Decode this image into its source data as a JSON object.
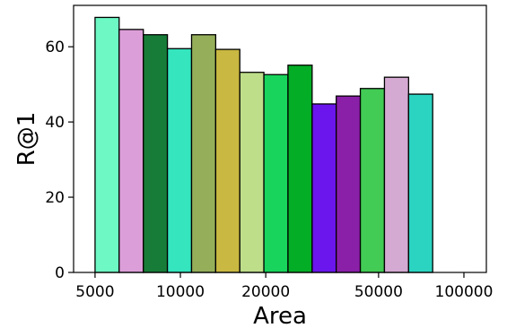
{
  "chart_data": {
    "type": "bar",
    "title": "",
    "xlabel": "Area",
    "ylabel": "R@1",
    "xscale": "log",
    "xlim": [
      4200,
      120000
    ],
    "ylim": [
      0,
      71
    ],
    "grid": false,
    "xticks": [
      {
        "value": 5000,
        "label": "5000"
      },
      {
        "value": 10000,
        "label": "10000"
      },
      {
        "value": 20000,
        "label": "20000"
      },
      {
        "value": 50000,
        "label": "50000"
      },
      {
        "value": 100000,
        "label": "100000"
      }
    ],
    "yticks": [
      {
        "value": 0,
        "label": "0"
      },
      {
        "value": 20,
        "label": "20"
      },
      {
        "value": 40,
        "label": "40"
      },
      {
        "value": 60,
        "label": "60"
      }
    ],
    "bins": [
      {
        "x0": 5000,
        "x1": 6080,
        "value": 67.8,
        "color": "#6df8c4"
      },
      {
        "x0": 6080,
        "x1": 7400,
        "value": 64.6,
        "color": "#dc9ed8"
      },
      {
        "x0": 7400,
        "x1": 9000,
        "value": 63.2,
        "color": "#177c38"
      },
      {
        "x0": 9000,
        "x1": 10950,
        "value": 59.5,
        "color": "#34e5be"
      },
      {
        "x0": 10950,
        "x1": 13320,
        "value": 63.2,
        "color": "#95ae5a"
      },
      {
        "x0": 13320,
        "x1": 16200,
        "value": 59.3,
        "color": "#c9b841"
      },
      {
        "x0": 16200,
        "x1": 19700,
        "value": 53.2,
        "color": "#bede8a"
      },
      {
        "x0": 19700,
        "x1": 23960,
        "value": 52.6,
        "color": "#18d45c"
      },
      {
        "x0": 23960,
        "x1": 29150,
        "value": 55.1,
        "color": "#03ae26"
      },
      {
        "x0": 29150,
        "x1": 35450,
        "value": 44.8,
        "color": "#6a16ec"
      },
      {
        "x0": 35450,
        "x1": 43120,
        "value": 46.9,
        "color": "#8a20a8"
      },
      {
        "x0": 43120,
        "x1": 52450,
        "value": 48.9,
        "color": "#42cb55"
      },
      {
        "x0": 52450,
        "x1": 63800,
        "value": 51.9,
        "color": "#d4a9d2"
      },
      {
        "x0": 63800,
        "x1": 77600,
        "value": 47.4,
        "color": "#2ad4c1"
      }
    ]
  }
}
